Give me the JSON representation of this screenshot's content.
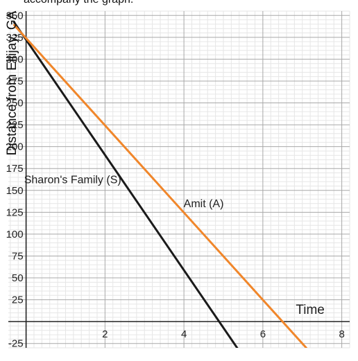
{
  "caption": "accompany the graph.",
  "chart_data": {
    "type": "line",
    "xlabel": "Time",
    "ylabel": "Distance from Ellijay, GA",
    "xlim": [
      -0.45,
      8.2
    ],
    "ylim": [
      -30,
      355
    ],
    "x_ticks": [
      2,
      4,
      6,
      8
    ],
    "y_ticks": [
      -25,
      25,
      50,
      75,
      100,
      125,
      150,
      175,
      200,
      225,
      250,
      275,
      300,
      325,
      350
    ],
    "x_tick_labels": [
      "2",
      "4",
      "6",
      "8"
    ],
    "y_tick_labels": [
      "-25",
      "25",
      "50",
      "75",
      "100",
      "125",
      "150",
      "175",
      "200",
      "225",
      "250",
      "275",
      "300",
      "325",
      "350"
    ],
    "minor_x_step": 0.2,
    "minor_y_step": 5,
    "grid": true,
    "series": [
      {
        "name": "Sharon's Family (S)",
        "color": "#1a1a1a",
        "x": [
          -0.3,
          5.5
        ],
        "y": [
          342,
          -40
        ]
      },
      {
        "name": "Amit (A)",
        "color": "#f0862a",
        "x": [
          -0.3,
          7.1
        ],
        "y": [
          339,
          -30
        ]
      }
    ],
    "annotations": [
      {
        "text": "Sharon's Family (S)",
        "x": 1.18,
        "y": 158
      },
      {
        "text": "Amit (A)",
        "x": 4.5,
        "y": 131
      },
      {
        "text": "Time",
        "x": 7.2,
        "y": 9
      }
    ]
  }
}
